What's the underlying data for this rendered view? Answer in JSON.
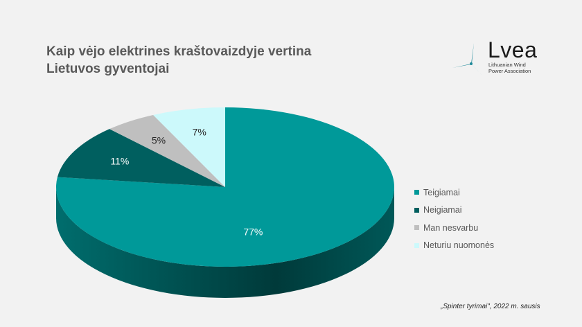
{
  "title_line1": "Kaip vėjo elektrines kraštovaizdyje vertina",
  "title_line2": "Lietuvos gyventojai",
  "logo": {
    "word": "Lvea",
    "sub_line1": "Lithuanian Wind",
    "sub_line2": "Power Association",
    "icon": "wind-turbine-icon"
  },
  "source": "„Spinter tyrimai\", 2022 m. sausis",
  "chart_data": {
    "type": "pie",
    "style": "3d",
    "title": "Kaip vėjo elektrines kraštovaizdyje vertina Lietuvos gyventojai",
    "legend_position": "right",
    "slices": [
      {
        "label": "Teigiamai",
        "value": 77,
        "display": "77%",
        "color": "#009999"
      },
      {
        "label": "Neigiamai",
        "value": 11,
        "display": "11%",
        "color": "#005f5f"
      },
      {
        "label": "Man nesvarbu",
        "value": 5,
        "display": "5%",
        "color": "#bfbfbf"
      },
      {
        "label": "Neturiu nuomonės",
        "value": 7,
        "display": "7%",
        "color": "#ccf9fb"
      }
    ]
  }
}
